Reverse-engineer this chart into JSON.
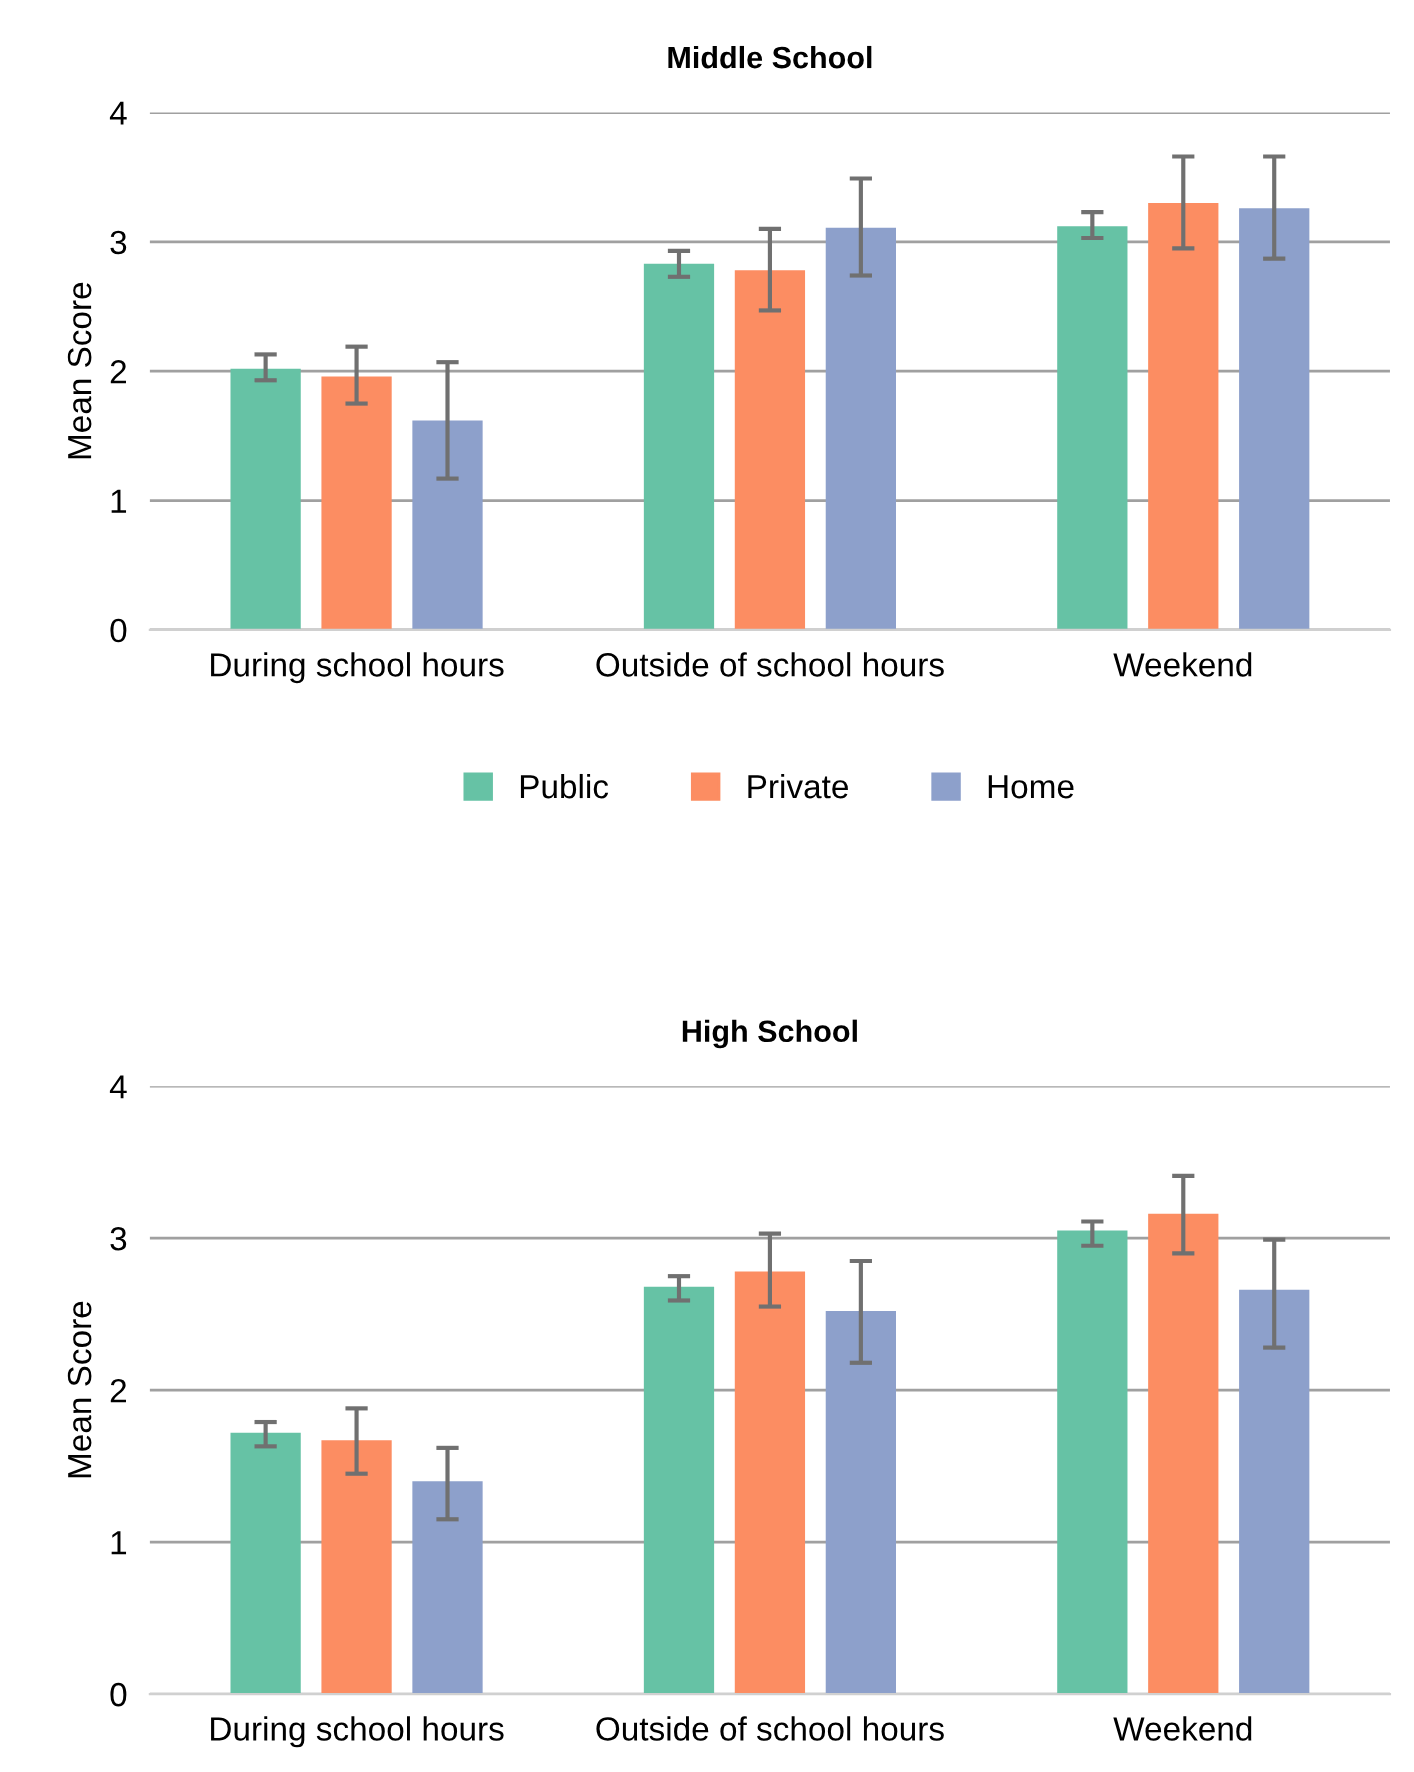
{
  "chart_data": [
    {
      "type": "bar",
      "title": "Middle School",
      "ylabel": "Mean Score",
      "categories": [
        "During school hours",
        "Outside of school hours",
        "Weekend"
      ],
      "ylim": [
        0,
        4
      ],
      "yticks": [
        0,
        1,
        2,
        3,
        4
      ],
      "grid": "y",
      "legend": "bottom",
      "series": [
        {
          "name": "Public",
          "color": "#66c2a5",
          "values": [
            2.02,
            2.83,
            3.12
          ],
          "errors": [
            [
              1.93,
              2.13
            ],
            [
              2.73,
              2.93
            ],
            [
              3.03,
              3.23
            ]
          ]
        },
        {
          "name": "Private",
          "color": "#fc8d62",
          "values": [
            1.96,
            2.78,
            3.3
          ],
          "errors": [
            [
              1.75,
              2.19
            ],
            [
              2.47,
              3.1
            ],
            [
              2.95,
              3.66
            ]
          ]
        },
        {
          "name": "Home",
          "color": "#8da0cb",
          "values": [
            1.62,
            3.11,
            3.26
          ],
          "errors": [
            [
              1.17,
              2.07
            ],
            [
              2.74,
              3.49
            ],
            [
              2.87,
              3.66
            ]
          ]
        }
      ]
    },
    {
      "type": "bar",
      "title": "High School",
      "ylabel": "Mean Score",
      "categories": [
        "During school hours",
        "Outside of school hours",
        "Weekend"
      ],
      "ylim": [
        0,
        4
      ],
      "yticks": [
        0,
        1,
        2,
        3,
        4
      ],
      "grid": "y",
      "series": [
        {
          "color": "#66c2a5",
          "values": [
            1.72,
            2.68,
            3.05
          ],
          "errors": [
            [
              1.63,
              1.79
            ],
            [
              2.59,
              2.75
            ],
            [
              2.95,
              3.11
            ]
          ]
        },
        {
          "color": "#fc8d62",
          "values": [
            1.67,
            2.78,
            3.16
          ],
          "errors": [
            [
              1.45,
              1.88
            ],
            [
              2.55,
              3.03
            ],
            [
              2.9,
              3.41
            ]
          ]
        },
        {
          "color": "#8da0cb",
          "values": [
            1.4,
            2.52,
            2.66
          ],
          "errors": [
            [
              1.15,
              1.62
            ],
            [
              2.18,
              2.85
            ],
            [
              2.28,
              2.99
            ]
          ]
        }
      ]
    }
  ]
}
